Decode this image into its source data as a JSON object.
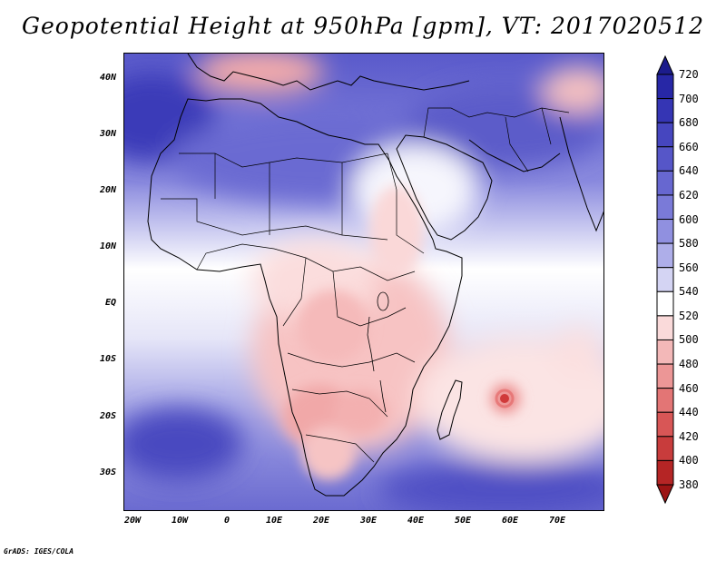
{
  "title": "Geopotential Height at 950hPa [gpm], VT: 2017020512",
  "footer": "GrADS: IGES/COLA",
  "lat_labels": [
    "40N",
    "30N",
    "20N",
    "10N",
    "EQ",
    "10S",
    "20S",
    "30S"
  ],
  "lon_labels": [
    "20W",
    "10W",
    "0",
    "10E",
    "20E",
    "30E",
    "40E",
    "50E",
    "60E",
    "70E"
  ],
  "colorbar": {
    "labels": [
      "720",
      "700",
      "680",
      "660",
      "640",
      "620",
      "600",
      "580",
      "560",
      "540",
      "520",
      "500",
      "480",
      "460",
      "440",
      "420",
      "400",
      "380"
    ],
    "colors": [
      "#1c1c8c",
      "#2727a6",
      "#3535b4",
      "#4646bf",
      "#5656c8",
      "#6767d0",
      "#7a7ad8",
      "#9090e0",
      "#aeaee9",
      "#d4d4f3",
      "#ffffff",
      "#fadada",
      "#f3b8b8",
      "#ec9696",
      "#e37575",
      "#d85656",
      "#c83c3c",
      "#b52525",
      "#9c1414"
    ]
  }
}
